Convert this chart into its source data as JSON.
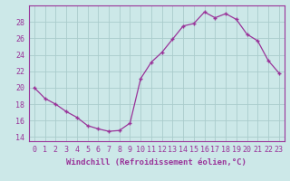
{
  "x": [
    0,
    1,
    2,
    3,
    4,
    5,
    6,
    7,
    8,
    9,
    10,
    11,
    12,
    13,
    14,
    15,
    16,
    17,
    18,
    19,
    20,
    21,
    22,
    23
  ],
  "y": [
    20.0,
    18.7,
    18.0,
    17.1,
    16.4,
    15.4,
    15.0,
    14.7,
    14.8,
    15.7,
    21.1,
    23.1,
    24.3,
    25.9,
    27.5,
    27.8,
    29.2,
    28.5,
    29.0,
    28.3,
    26.5,
    25.7,
    23.3,
    21.8
  ],
  "line_color": "#993399",
  "marker": "+",
  "marker_size": 3,
  "background_color": "#cce8e8",
  "grid_color": "#aacccc",
  "axis_color": "#993399",
  "xlabel": "Windchill (Refroidissement éolien,°C)",
  "xlim_min": -0.5,
  "xlim_max": 23.5,
  "ylim_min": 13.5,
  "ylim_max": 30.0,
  "yticks": [
    14,
    16,
    18,
    20,
    22,
    24,
    26,
    28
  ],
  "xticks": [
    0,
    1,
    2,
    3,
    4,
    5,
    6,
    7,
    8,
    9,
    10,
    11,
    12,
    13,
    14,
    15,
    16,
    17,
    18,
    19,
    20,
    21,
    22,
    23
  ],
  "label_fontsize": 6.5,
  "tick_fontsize": 6.0
}
